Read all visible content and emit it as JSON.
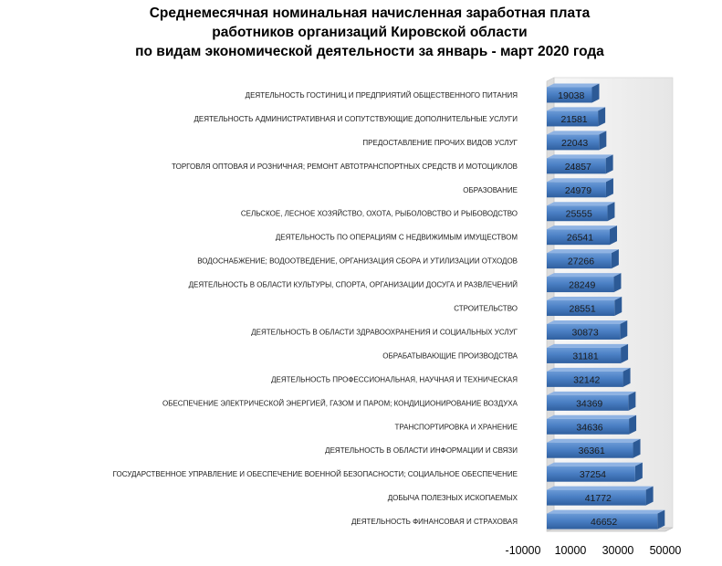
{
  "chart_data": {
    "type": "bar",
    "orientation": "horizontal",
    "title": [
      "Среднемесячная номинальная начисленная заработная плата",
      "работников организаций Кировской области",
      "по видам экономической деятельности за январь - март 2020 года"
    ],
    "categories": [
      "ДЕЯТЕЛЬНОСТЬ ГОСТИНИЦ И ПРЕДПРИЯТИЙ ОБЩЕСТВЕННОГО ПИТАНИЯ",
      "ДЕЯТЕЛЬНОСТЬ АДМИНИСТРАТИВНАЯ И СОПУТСТВУЮЩИЕ ДОПОЛНИТЕЛЬНЫЕ УСЛУГИ",
      "ПРЕДОСТАВЛЕНИЕ ПРОЧИХ ВИДОВ УСЛУГ",
      "ТОРГОВЛЯ ОПТОВАЯ И РОЗНИЧНАЯ; РЕМОНТ АВТОТРАНСПОРТНЫХ СРЕДСТВ И МОТОЦИКЛОВ",
      "ОБРАЗОВАНИЕ",
      "СЕЛЬСКОЕ, ЛЕСНОЕ ХОЗЯЙСТВО, ОХОТА, РЫБОЛОВСТВО И РЫБОВОДСТВО",
      "ДЕЯТЕЛЬНОСТЬ ПО ОПЕРАЦИЯМ С НЕДВИЖИМЫМ ИМУЩЕСТВОМ",
      "ВОДОСНАБЖЕНИЕ; ВОДООТВЕДЕНИЕ, ОРГАНИЗАЦИЯ СБОРА И УТИЛИЗАЦИИ ОТХОДОВ",
      "ДЕЯТЕЛЬНОСТЬ В ОБЛАСТИ КУЛЬТУРЫ, СПОРТА, ОРГАНИЗАЦИИ ДОСУГА И РАЗВЛЕЧЕНИЙ",
      "СТРОИТЕЛЬСТВО",
      "ДЕЯТЕЛЬНОСТЬ В ОБЛАСТИ ЗДРАВООХРАНЕНИЯ И СОЦИАЛЬНЫХ УСЛУГ",
      "ОБРАБАТЫВАЮЩИЕ ПРОИЗВОДСТВА",
      "ДЕЯТЕЛЬНОСТЬ ПРОФЕССИОНАЛЬНАЯ, НАУЧНАЯ И ТЕХНИЧЕСКАЯ",
      "ОБЕСПЕЧЕНИЕ ЭЛЕКТРИЧЕСКОЙ ЭНЕРГИЕЙ, ГАЗОМ И ПАРОМ; КОНДИЦИОНИРОВАНИЕ ВОЗДУХА",
      "ТРАНСПОРТИРОВКА И ХРАНЕНИЕ",
      "ДЕЯТЕЛЬНОСТЬ В ОБЛАСТИ ИНФОРМАЦИИ И СВЯЗИ",
      "ГОСУДАРСТВЕННОЕ УПРАВЛЕНИЕ И ОБЕСПЕЧЕНИЕ ВОЕННОЙ БЕЗОПАСНОСТИ; СОЦИАЛЬНОЕ ОБЕСПЕЧЕНИЕ",
      "ДОБЫЧА ПОЛЕЗНЫХ ИСКОПАЕМЫХ",
      "ДЕЯТЕЛЬНОСТЬ ФИНАНСОВАЯ И СТРАХОВАЯ"
    ],
    "values": [
      19038,
      21581,
      22043,
      24857,
      24979,
      25555,
      26541,
      27266,
      28249,
      28551,
      30873,
      31181,
      32142,
      34369,
      34636,
      36361,
      37254,
      41772,
      46652
    ],
    "xlim": [
      -10000,
      50000
    ],
    "xticks": [
      -10000,
      10000,
      30000,
      50000
    ],
    "xtick_labels": [
      "-10000",
      "10000",
      "30000",
      "50000"
    ],
    "data_labels": true,
    "grid": false,
    "legend": "none",
    "style": "3d",
    "bar_color": "#4F81BD"
  }
}
